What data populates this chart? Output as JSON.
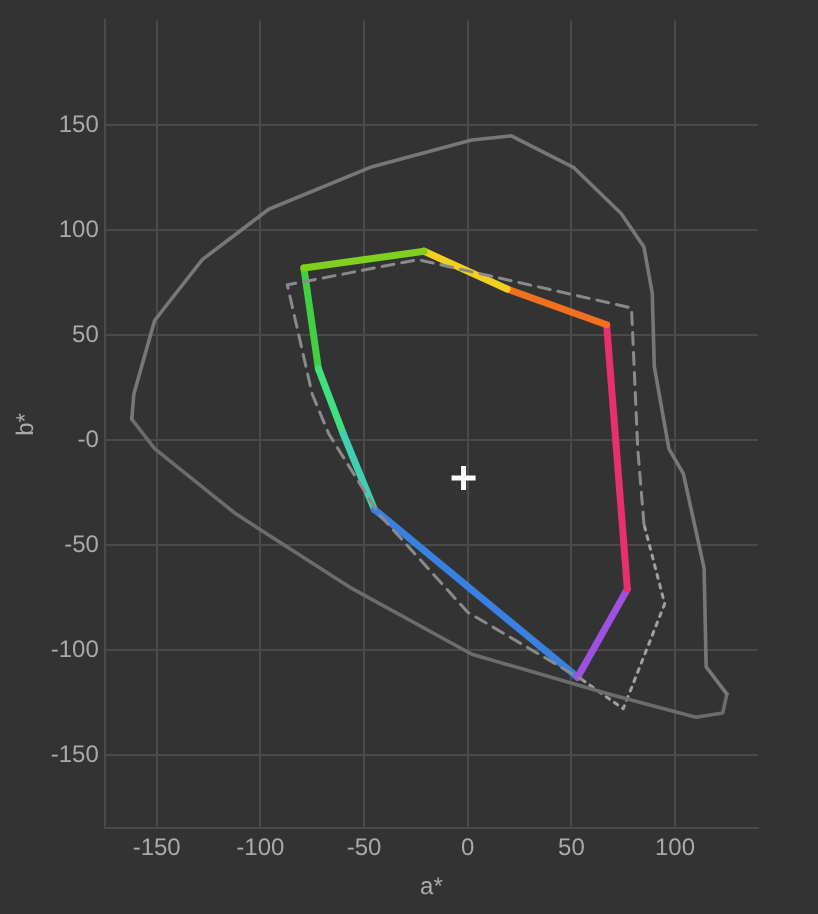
{
  "chart_data": {
    "type": "line",
    "xlabel": "a*",
    "ylabel": "b*",
    "xlim": [
      -175,
      140
    ],
    "ylim": [
      -185,
      200
    ],
    "xticks": [
      -150,
      -100,
      -50,
      0,
      50,
      100
    ],
    "yticks": [
      -150,
      -100,
      -50,
      {
        "value": 0,
        "label": "-0"
      },
      50,
      100,
      150
    ],
    "grid": true,
    "legend": false,
    "marker": "none",
    "line_style": "solid",
    "series": [
      {
        "color": "#777777",
        "x": [
          -162,
          -161,
          -151,
          -128,
          -96,
          -47,
          2,
          21,
          51,
          74,
          85,
          89,
          90,
          97,
          104,
          114,
          115,
          125
        ],
        "values": [
          10,
          22,
          57,
          86,
          110,
          130,
          143,
          145,
          130,
          108,
          92,
          70,
          35,
          -4,
          -16,
          -61,
          -108,
          -121
        ]
      },
      {
        "color": "#6c6c6c",
        "x": [
          125,
          123,
          110,
          68,
          2,
          -57,
          -112,
          -151,
          -162
        ],
        "values": [
          -121,
          -130,
          -132,
          -121,
          -102,
          -70,
          -35,
          -4,
          10
        ]
      },
      {
        "color": "#8a8a8a",
        "line_style": "dashed",
        "x": [
          85,
          82,
          79,
          -24,
          -87,
          -75,
          -67,
          -43,
          0,
          55
        ],
        "values": [
          -40,
          -4,
          63,
          86,
          74,
          22,
          3,
          -35,
          -82,
          -114
        ]
      },
      {
        "color": "#a0a0a0",
        "line_style": "dotted",
        "x": [
          55,
          75,
          95,
          85
        ],
        "values": [
          -114,
          -128,
          -78,
          -40
        ]
      },
      {
        "color": "#80d020",
        "x": [
          -79,
          -21
        ],
        "values": [
          82,
          90
        ]
      },
      {
        "color": "#f0d020",
        "x": [
          -21,
          19
        ],
        "values": [
          90,
          72
        ]
      },
      {
        "color": "#f07020",
        "x": [
          19,
          67
        ],
        "values": [
          72,
          55
        ]
      },
      {
        "color": "#e83070",
        "x": [
          67,
          77
        ],
        "values": [
          55,
          -71
        ]
      },
      {
        "color": "#a050e0",
        "x": [
          77,
          53
        ],
        "values": [
          -71,
          -113
        ]
      },
      {
        "color": "#3a80e0",
        "x": [
          53,
          -45
        ],
        "values": [
          -113,
          -33
        ]
      },
      {
        "color": "#40d0b0",
        "x": [
          -45,
          -60
        ],
        "values": [
          -33,
          3
        ]
      },
      {
        "color": "#40e080",
        "x": [
          -60,
          -72
        ],
        "values": [
          3,
          34
        ]
      },
      {
        "color": "#40d040",
        "x": [
          -72,
          -79
        ],
        "values": [
          34,
          82
        ]
      },
      {
        "type": "scatter",
        "color": "#ffffff",
        "marker": "cross",
        "x": [
          -2
        ],
        "values": [
          -18
        ]
      }
    ]
  }
}
